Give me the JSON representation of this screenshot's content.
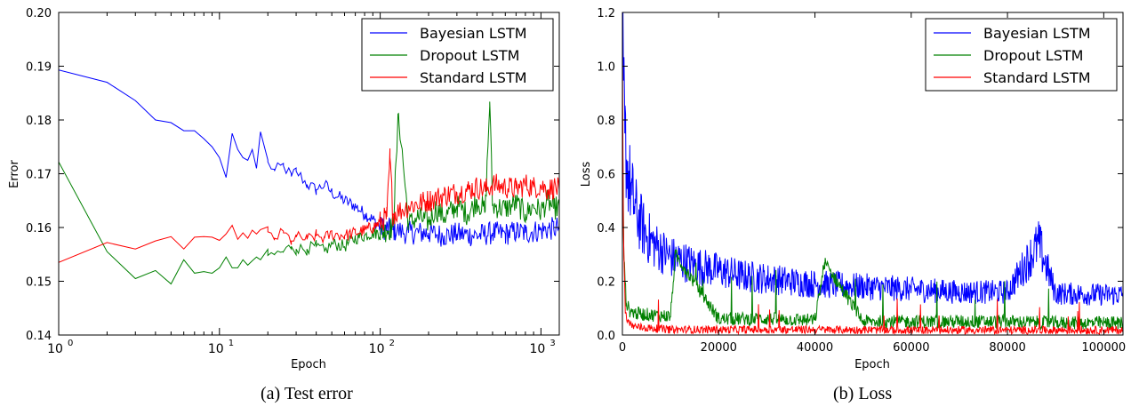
{
  "figure": {
    "captions": [
      "(a) Test error",
      "(b) Loss"
    ]
  },
  "colors": {
    "bayesian": "#0000ff",
    "dropout": "#008000",
    "standard": "#ff0000"
  },
  "chart_data": [
    {
      "type": "line",
      "title": "",
      "caption": "(a) Test error",
      "xlabel": "Epoch",
      "ylabel": "Error",
      "xscale": "log",
      "xlim": [
        1,
        1300
      ],
      "ylim": [
        0.14,
        0.2
      ],
      "xticks": [
        1,
        10,
        100,
        1000
      ],
      "xtick_labels": [
        {
          "base": "10",
          "exp": "0"
        },
        {
          "base": "10",
          "exp": "1"
        },
        {
          "base": "10",
          "exp": "2"
        },
        {
          "base": "10",
          "exp": "3"
        }
      ],
      "yticks": [
        "0.14",
        "0.15",
        "0.16",
        "0.17",
        "0.18",
        "0.19",
        "0.20"
      ],
      "grid": false,
      "legend": "top-right",
      "series": [
        {
          "name": "Bayesian LSTM",
          "color": "#0000ff",
          "x": [
            1,
            2,
            3,
            4,
            5,
            6,
            7,
            8,
            9,
            10,
            11,
            12,
            13,
            14,
            15,
            16,
            17,
            18,
            20,
            22,
            25,
            28,
            30,
            35,
            40,
            45,
            50,
            60,
            70,
            80,
            90,
            100,
            120,
            150,
            200,
            250,
            300,
            400,
            500,
            600,
            700,
            800,
            1000,
            1200,
            1300
          ],
          "values": [
            0.1893,
            0.187,
            0.1836,
            0.18,
            0.1795,
            0.178,
            0.178,
            0.1765,
            0.175,
            0.173,
            0.1693,
            0.1775,
            0.1745,
            0.173,
            0.1725,
            0.1745,
            0.171,
            0.1778,
            0.1722,
            0.1705,
            0.1715,
            0.1695,
            0.1705,
            0.168,
            0.167,
            0.168,
            0.1665,
            0.165,
            0.164,
            0.1625,
            0.1615,
            0.16,
            0.1595,
            0.159,
            0.159,
            0.1585,
            0.1588,
            0.1585,
            0.159,
            0.1588,
            0.1592,
            0.159,
            0.1595,
            0.1598,
            0.16
          ]
        },
        {
          "name": "Dropout LSTM",
          "color": "#008000",
          "x": [
            1,
            2,
            3,
            4,
            5,
            6,
            7,
            8,
            9,
            10,
            11,
            12,
            13,
            14,
            15,
            16,
            17,
            18,
            20,
            22,
            25,
            28,
            30,
            35,
            40,
            45,
            50,
            60,
            70,
            80,
            90,
            100,
            110,
            120,
            130,
            150,
            170,
            200,
            220,
            250,
            300,
            350,
            400,
            450,
            480,
            500,
            600,
            700,
            800,
            900,
            1000,
            1100,
            1200,
            1300
          ],
          "values": [
            0.1722,
            0.1555,
            0.1505,
            0.152,
            0.1495,
            0.154,
            0.1515,
            0.1518,
            0.1515,
            0.1525,
            0.1545,
            0.1525,
            0.1525,
            0.154,
            0.153,
            0.1538,
            0.1545,
            0.154,
            0.1548,
            0.155,
            0.1555,
            0.1565,
            0.156,
            0.156,
            0.1565,
            0.1555,
            0.157,
            0.1565,
            0.158,
            0.1585,
            0.159,
            0.159,
            0.1595,
            0.16,
            0.1812,
            0.1605,
            0.162,
            0.161,
            0.1635,
            0.162,
            0.164,
            0.1625,
            0.165,
            0.163,
            0.1834,
            0.164,
            0.1635,
            0.1645,
            0.1625,
            0.164,
            0.163,
            0.165,
            0.1635,
            0.164
          ]
        },
        {
          "name": "Standard LSTM",
          "color": "#ff0000",
          "x": [
            1,
            2,
            3,
            4,
            5,
            6,
            7,
            8,
            9,
            10,
            11,
            12,
            13,
            14,
            15,
            16,
            17,
            18,
            20,
            22,
            25,
            28,
            30,
            35,
            40,
            45,
            50,
            60,
            70,
            80,
            90,
            100,
            110,
            115,
            120,
            150,
            200,
            250,
            300,
            350,
            400,
            450,
            500,
            600,
            700,
            800,
            900,
            1000,
            1100,
            1200,
            1300
          ],
          "values": [
            0.1535,
            0.1572,
            0.156,
            0.1575,
            0.1583,
            0.156,
            0.1582,
            0.1583,
            0.1582,
            0.1576,
            0.1588,
            0.1604,
            0.1578,
            0.159,
            0.158,
            0.1595,
            0.1588,
            0.1596,
            0.1592,
            0.158,
            0.159,
            0.1575,
            0.1582,
            0.1578,
            0.1585,
            0.158,
            0.1588,
            0.1585,
            0.159,
            0.1595,
            0.16,
            0.161,
            0.162,
            0.173,
            0.1625,
            0.164,
            0.165,
            0.166,
            0.1665,
            0.167,
            0.1675,
            0.167,
            0.168,
            0.1675,
            0.1672,
            0.168,
            0.1675,
            0.1678,
            0.167,
            0.1675,
            0.167
          ]
        }
      ]
    },
    {
      "type": "line",
      "title": "",
      "caption": "(b) Loss",
      "xlabel": "Epoch",
      "ylabel": "Loss",
      "xlim": [
        0,
        104000
      ],
      "ylim": [
        0.0,
        1.2
      ],
      "xticks": [
        "0",
        "20000",
        "40000",
        "60000",
        "80000",
        "100000"
      ],
      "yticks": [
        "0.0",
        "0.2",
        "0.4",
        "0.6",
        "0.8",
        "1.0",
        "1.2"
      ],
      "grid": false,
      "legend": "top-right",
      "series": [
        {
          "name": "Bayesian LSTM",
          "color": "#0000ff",
          "x": [
            0,
            500,
            1000,
            2000,
            3000,
            5000,
            7000,
            10000,
            15000,
            20000,
            25000,
            30000,
            40000,
            50000,
            60000,
            70000,
            80000,
            86500,
            90000,
            100000,
            104000
          ],
          "values": [
            1.02,
            0.75,
            0.62,
            0.52,
            0.45,
            0.37,
            0.33,
            0.29,
            0.26,
            0.24,
            0.22,
            0.21,
            0.19,
            0.18,
            0.17,
            0.16,
            0.16,
            0.34,
            0.155,
            0.15,
            0.15
          ]
        },
        {
          "name": "Dropout LSTM",
          "color": "#008000",
          "x": [
            0,
            300,
            800,
            1500,
            3000,
            6000,
            10000,
            11000,
            20000,
            30000,
            40000,
            42000,
            50000,
            60000,
            70000,
            80000,
            90000,
            100000,
            104000
          ],
          "values": [
            0.8,
            0.3,
            0.12,
            0.09,
            0.08,
            0.075,
            0.07,
            0.3,
            0.06,
            0.06,
            0.055,
            0.27,
            0.05,
            0.05,
            0.05,
            0.05,
            0.045,
            0.045,
            0.045
          ]
        },
        {
          "name": "Standard LSTM",
          "color": "#ff0000",
          "x": [
            0,
            200,
            600,
            1500,
            3000,
            6000,
            10000,
            20000,
            40000,
            60000,
            80000,
            100000,
            104000
          ],
          "values": [
            1.05,
            0.4,
            0.08,
            0.04,
            0.03,
            0.025,
            0.02,
            0.02,
            0.02,
            0.018,
            0.018,
            0.018,
            0.018
          ]
        }
      ]
    }
  ]
}
